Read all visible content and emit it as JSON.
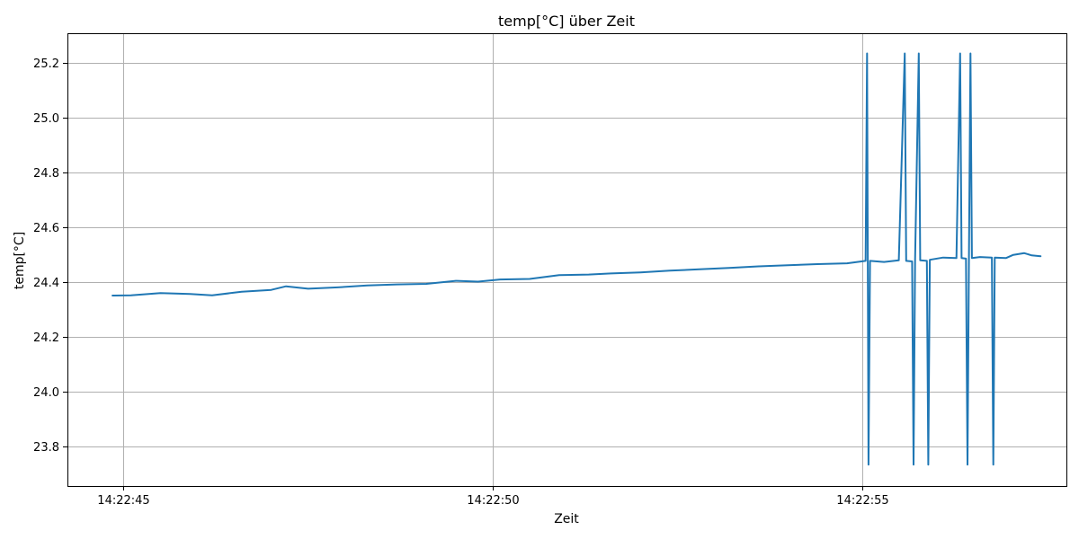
{
  "chart_data": {
    "type": "line",
    "title": "temp[°C] über Zeit",
    "xlabel": "Zeit",
    "ylabel": "temp[°C]",
    "grid": true,
    "color": "#1f77b4",
    "x_ticks": [
      {
        "t": 45,
        "label": "14:22:45"
      },
      {
        "t": 50,
        "label": "14:22:50"
      },
      {
        "t": 55,
        "label": "14:22:55"
      }
    ],
    "y_ticks": [
      23.8,
      24.0,
      24.2,
      24.4,
      24.6,
      24.8,
      25.0,
      25.2
    ],
    "xlim": [
      44.24,
      57.77
    ],
    "ylim": [
      23.655,
      25.31
    ],
    "series": [
      {
        "x_unit": "seconds after 14:22:00",
        "points": [
          [
            44.85,
            24.351
          ],
          [
            45.1,
            24.352
          ],
          [
            45.5,
            24.36
          ],
          [
            45.9,
            24.357
          ],
          [
            46.2,
            24.352
          ],
          [
            46.6,
            24.365
          ],
          [
            47.0,
            24.372
          ],
          [
            47.2,
            24.385
          ],
          [
            47.5,
            24.376
          ],
          [
            47.9,
            24.381
          ],
          [
            48.3,
            24.388
          ],
          [
            48.7,
            24.392
          ],
          [
            49.1,
            24.394
          ],
          [
            49.5,
            24.405
          ],
          [
            49.8,
            24.402
          ],
          [
            50.1,
            24.41
          ],
          [
            50.5,
            24.412
          ],
          [
            50.9,
            24.426
          ],
          [
            51.3,
            24.428
          ],
          [
            51.6,
            24.432
          ],
          [
            52.0,
            24.436
          ],
          [
            52.4,
            24.442
          ],
          [
            52.8,
            24.447
          ],
          [
            53.2,
            24.452
          ],
          [
            53.6,
            24.458
          ],
          [
            54.0,
            24.462
          ],
          [
            54.4,
            24.466
          ],
          [
            54.8,
            24.469
          ],
          [
            55.05,
            24.478
          ],
          [
            55.07,
            25.236
          ],
          [
            55.09,
            23.733
          ],
          [
            55.11,
            24.478
          ],
          [
            55.3,
            24.474
          ],
          [
            55.5,
            24.48
          ],
          [
            55.58,
            25.236
          ],
          [
            55.6,
            24.478
          ],
          [
            55.68,
            24.476
          ],
          [
            55.7,
            23.733
          ],
          [
            55.72,
            24.48
          ],
          [
            55.77,
            25.236
          ],
          [
            55.79,
            24.48
          ],
          [
            55.88,
            24.478
          ],
          [
            55.9,
            23.733
          ],
          [
            55.92,
            24.482
          ],
          [
            56.1,
            24.49
          ],
          [
            56.28,
            24.488
          ],
          [
            56.33,
            25.236
          ],
          [
            56.35,
            24.488
          ],
          [
            56.41,
            24.486
          ],
          [
            56.43,
            23.733
          ],
          [
            56.45,
            24.488
          ],
          [
            56.47,
            25.236
          ],
          [
            56.49,
            24.488
          ],
          [
            56.6,
            24.492
          ],
          [
            56.76,
            24.49
          ],
          [
            56.78,
            23.733
          ],
          [
            56.8,
            24.49
          ],
          [
            56.95,
            24.488
          ],
          [
            57.05,
            24.5
          ],
          [
            57.2,
            24.506
          ],
          [
            57.3,
            24.498
          ],
          [
            57.42,
            24.495
          ]
        ]
      }
    ]
  }
}
